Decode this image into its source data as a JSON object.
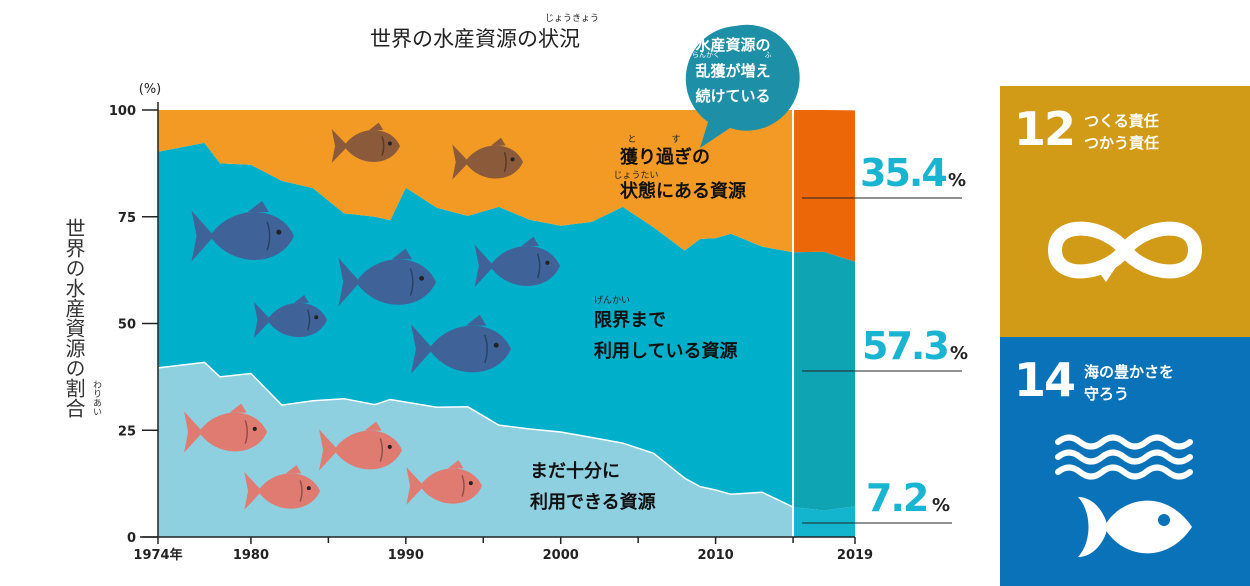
{
  "chart_data": {
    "type": "area",
    "title": "世界の水産資源の状況",
    "title_ruby": "じょうきょう",
    "ylabel": "世界の水産資源の割合",
    "ylabel_ruby": "わりあい",
    "yunit": "(%)",
    "ylim": [
      0,
      100
    ],
    "yticks": [
      "0",
      "25",
      "50",
      "75",
      "100"
    ],
    "xlim": [
      1974,
      2019
    ],
    "xtick_labels": [
      {
        "x": 1974,
        "label": "1974年"
      },
      {
        "x": 1980,
        "label": "1980"
      },
      {
        "x": 1990,
        "label": "1990"
      },
      {
        "x": 2000,
        "label": "2000"
      },
      {
        "x": 2010,
        "label": "2010"
      },
      {
        "x": 2019,
        "label": "2019"
      }
    ],
    "xminor": [
      1985,
      1995,
      2005,
      2015
    ],
    "x": [
      1974,
      1977,
      1978,
      1980,
      1982,
      1984,
      1986,
      1988,
      1989,
      1990,
      1992,
      1994,
      1996,
      1998,
      2000,
      2002,
      2004,
      2006,
      2008,
      2009,
      2010,
      2011,
      2013,
      2015,
      2017,
      2019
    ],
    "series": [
      {
        "name": "まだ十分に利用できる資源",
        "values": [
          39.6,
          40.9,
          37.5,
          38.3,
          30.9,
          31.9,
          32.4,
          31.0,
          32.2,
          31.6,
          30.4,
          30.5,
          26.2,
          25.3,
          24.6,
          23.3,
          22.0,
          19.6,
          13.8,
          11.8,
          11.0,
          10.0,
          10.5,
          7.0,
          6.2,
          7.2
        ]
      },
      {
        "name": "限界まで利用している資源",
        "values": [
          50.6,
          51.4,
          50.0,
          48.9,
          52.5,
          49.8,
          43.4,
          44.0,
          42.0,
          50.2,
          46.7,
          44.7,
          51.1,
          49.0,
          48.3,
          50.5,
          55.3,
          52.9,
          53.3,
          58.0,
          59.0,
          61.0,
          57.5,
          59.7,
          60.6,
          57.3
        ]
      },
      {
        "name": "獲り過ぎの状態にある資源",
        "values": [
          9.8,
          7.7,
          12.5,
          12.8,
          16.6,
          18.3,
          24.2,
          25.0,
          25.8,
          18.2,
          22.9,
          24.8,
          22.7,
          25.7,
          27.1,
          26.2,
          22.7,
          27.5,
          32.9,
          30.2,
          30.0,
          29.0,
          32.0,
          33.3,
          33.2,
          35.4
        ]
      }
    ],
    "labels": {
      "overfished": {
        "line1": "獲り過ぎの",
        "line2": "状態にある資源",
        "ruby1a": "と",
        "ruby1b": "す",
        "ruby2": "じょうたい",
        "value": "35.4",
        "unit": "%"
      },
      "maximal": {
        "line1": "限界まで",
        "line2": "利用している資源",
        "ruby1": "げんかい",
        "value": "57.3",
        "unit": "%"
      },
      "under": {
        "line1": "まだ十分に",
        "line2": "利用できる資源",
        "value": "7.2",
        "unit": "%"
      }
    },
    "callout": {
      "line1": "水産資源の",
      "line2": "乱獲が増え",
      "line3": "続けている",
      "ruby_a": "らんかく",
      "ruby_b": "ふ"
    },
    "colors": {
      "under": "#8ecfe0",
      "maximal": "#00b0cb",
      "overfished": "#f39a24",
      "under_2019": "#12b5cd",
      "maximal_2019": "#0fa4b3",
      "overfished_2019": "#ec6708",
      "value_text": "#19b4d2",
      "callout": "#1d8fa6",
      "fish_blue": "#3f6399",
      "fish_brown": "#8a5a3a",
      "fish_red": "#e07b72"
    }
  },
  "sdg12": {
    "number": "12",
    "title_line1": "つくる責任",
    "title_line2": "つかう責任",
    "color": "#d19a17",
    "icon": "infinity-arrow-icon"
  },
  "sdg14": {
    "number": "14",
    "title_line1": "海の豊かさを",
    "title_line2": "守ろう",
    "color": "#0a72b8",
    "icon": "fish-wave-icon"
  }
}
